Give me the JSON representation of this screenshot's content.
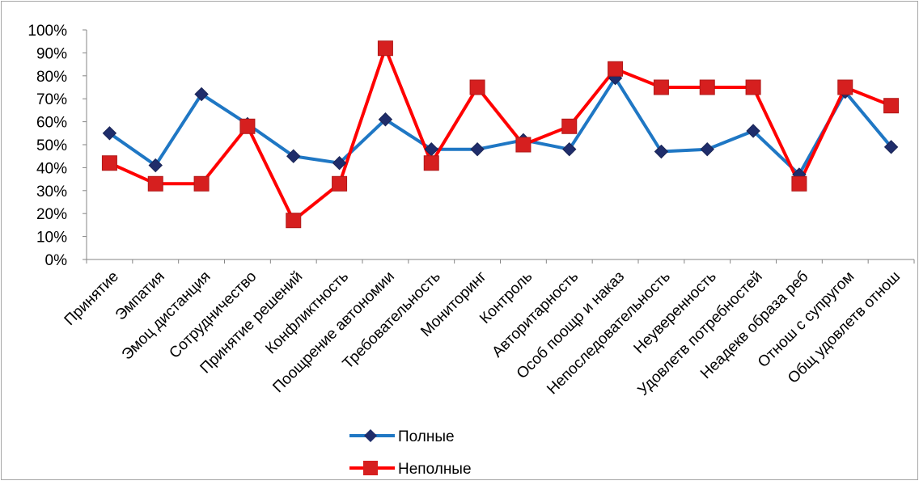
{
  "chart_data": {
    "type": "line",
    "title": "",
    "xlabel": "",
    "ylabel": "",
    "ylim": [
      0,
      100
    ],
    "y_ticks": [
      "0%",
      "10%",
      "20%",
      "30%",
      "40%",
      "50%",
      "60%",
      "70%",
      "80%",
      "90%",
      "100%"
    ],
    "grid": false,
    "legend_position": "bottom",
    "categories": [
      "Принятие",
      "Эмпатия",
      "Эмоц дистанция",
      "Сотрудничество",
      "Принятие решений",
      "Конфликтность",
      "Поощрение автономии",
      "Требовательность",
      "Мониторинг",
      "Контроль",
      "Авторитарность",
      "Особ поощр и наказ",
      "Непоследовательность",
      "Неуверенность",
      "Удовлетв потребностей",
      "Неадекв образа реб",
      "Отнош с супругом",
      "Общ удовлетв отнош"
    ],
    "series": [
      {
        "name": "Полные",
        "color": "#1F77C4",
        "marker_color": "#1F2D6B",
        "marker": "diamond",
        "values": [
          55,
          41,
          72,
          59,
          45,
          42,
          61,
          48,
          48,
          52,
          48,
          79,
          47,
          48,
          56,
          37,
          73,
          49
        ]
      },
      {
        "name": "Неполные",
        "color": "#FF0000",
        "marker_color": "#D61F1F",
        "marker": "square",
        "values": [
          42,
          33,
          33,
          58,
          17,
          33,
          92,
          42,
          75,
          50,
          58,
          83,
          75,
          75,
          75,
          33,
          75,
          67
        ]
      }
    ]
  }
}
